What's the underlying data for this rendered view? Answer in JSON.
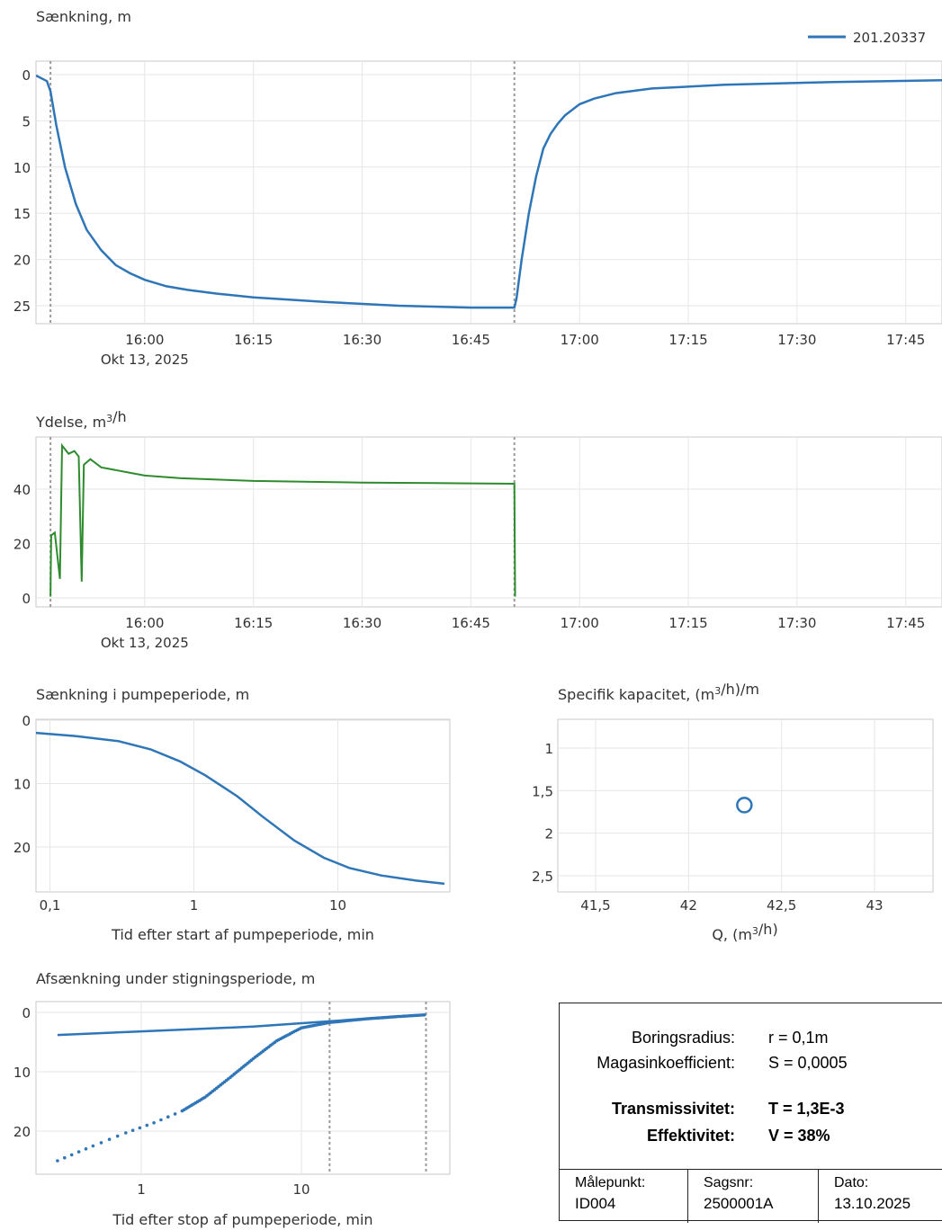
{
  "chart_data": [
    {
      "id": "drawdown",
      "type": "line",
      "title": "Sænkning, m",
      "legend": [
        "201.20337"
      ],
      "legend_position": "top-right",
      "y_inverted": true,
      "ylim": [
        0,
        27
      ],
      "y_ticks": [
        "0",
        "5",
        "10",
        "15",
        "20",
        "25"
      ],
      "x_range_min": [
        945,
        1070
      ],
      "x_ticks": [
        "16:00",
        "16:15",
        "16:30",
        "16:45",
        "17:00",
        "17:15",
        "17:30",
        "17:45"
      ],
      "x_date_label": "Okt 13, 2025",
      "vlines_min": [
        947,
        1011
      ],
      "series": [
        {
          "name": "201.20337",
          "color": "#2f76b8",
          "points": [
            [
              945,
              0.1
            ],
            [
              946.5,
              0.7
            ],
            [
              947,
              1.8
            ],
            [
              947.8,
              5.5
            ],
            [
              949,
              10
            ],
            [
              950.5,
              14
            ],
            [
              952,
              16.8
            ],
            [
              954,
              19
            ],
            [
              956,
              20.6
            ],
            [
              958,
              21.5
            ],
            [
              960,
              22.2
            ],
            [
              963,
              22.9
            ],
            [
              966,
              23.3
            ],
            [
              970,
              23.7
            ],
            [
              975,
              24.1
            ],
            [
              985,
              24.6
            ],
            [
              995,
              25
            ],
            [
              1005,
              25.2
            ],
            [
              1011,
              25.2
            ],
            [
              1011.3,
              24.2
            ],
            [
              1012,
              20
            ],
            [
              1013,
              15
            ],
            [
              1014,
              11
            ],
            [
              1015,
              8
            ],
            [
              1016,
              6.4
            ],
            [
              1017,
              5.3
            ],
            [
              1018,
              4.4
            ],
            [
              1020,
              3.2
            ],
            [
              1022,
              2.6
            ],
            [
              1025,
              2
            ],
            [
              1030,
              1.5
            ],
            [
              1040,
              1.1
            ],
            [
              1055,
              0.8
            ],
            [
              1070,
              0.6
            ]
          ]
        }
      ]
    },
    {
      "id": "yield",
      "type": "line",
      "title": "Ydelse, m³/h",
      "ylim": [
        -3,
        59
      ],
      "y_ticks": [
        "0",
        "20",
        "40"
      ],
      "x_range_min": [
        945,
        1070
      ],
      "x_ticks": [
        "16:00",
        "16:15",
        "16:30",
        "16:45",
        "17:00",
        "17:15",
        "17:30",
        "17:45"
      ],
      "x_date_label": "Okt 13, 2025",
      "vlines_min": [
        947,
        1011
      ],
      "series": [
        {
          "name": "",
          "color": "#2e8b2e",
          "points": [
            [
              947,
              0.5
            ],
            [
              947.1,
              23
            ],
            [
              947.6,
              24
            ],
            [
              948.3,
              7
            ],
            [
              948.6,
              56
            ],
            [
              949.5,
              53
            ],
            [
              950.3,
              54
            ],
            [
              950.9,
              52
            ],
            [
              951.3,
              6
            ],
            [
              951.6,
              49
            ],
            [
              952.5,
              51
            ],
            [
              954,
              48
            ],
            [
              956,
              47
            ],
            [
              958,
              46
            ],
            [
              960,
              45
            ],
            [
              965,
              44
            ],
            [
              970,
              43.5
            ],
            [
              975,
              43
            ],
            [
              980,
              42.8
            ],
            [
              985,
              42.6
            ],
            [
              990,
              42.4
            ],
            [
              995,
              42.3
            ],
            [
              1000,
              42.2
            ],
            [
              1005,
              42.1
            ],
            [
              1011,
              42
            ],
            [
              1011.1,
              0.5
            ]
          ]
        }
      ]
    },
    {
      "id": "pump-period",
      "type": "line",
      "title": "Sænkning i pumpeperiode, m",
      "xlabel": "Tid efter start af pumpeperiode, min",
      "x_scale": "log",
      "xlim": [
        0.08,
        60
      ],
      "x_ticks": [
        0.1,
        1,
        10
      ],
      "x_tick_labels": [
        "0,1",
        "1",
        "10"
      ],
      "ylim": [
        0,
        27
      ],
      "y_inverted": true,
      "y_ticks": [
        "0",
        "10",
        "20"
      ],
      "series": [
        {
          "name": "",
          "color": "#2f76b8",
          "points": [
            [
              0.08,
              2
            ],
            [
              0.15,
              2.5
            ],
            [
              0.3,
              3.3
            ],
            [
              0.5,
              4.6
            ],
            [
              0.8,
              6.5
            ],
            [
              1.2,
              8.7
            ],
            [
              2,
              12
            ],
            [
              3,
              15.2
            ],
            [
              5,
              19
            ],
            [
              8,
              21.7
            ],
            [
              12,
              23.3
            ],
            [
              20,
              24.5
            ],
            [
              35,
              25.3
            ],
            [
              55,
              25.8
            ]
          ]
        }
      ]
    },
    {
      "id": "specific-capacity",
      "type": "scatter",
      "title": "Specifik kapacitet, (m³/h)/m",
      "xlabel": "Q, (m³/h)",
      "xlim": [
        41.3,
        43.3
      ],
      "x_ticks": [
        41.5,
        42,
        42.5,
        43
      ],
      "x_tick_labels": [
        "41,5",
        "42",
        "42,5",
        "43"
      ],
      "ylim": [
        0.7,
        2.7
      ],
      "y_inverted": true,
      "y_ticks": [
        1,
        1.5,
        2,
        2.5
      ],
      "y_tick_labels": [
        "1",
        "1,5",
        "2",
        "2,5"
      ],
      "points": [
        [
          42.3,
          1.67
        ]
      ],
      "color": "#2f76b8"
    },
    {
      "id": "recovery",
      "type": "line",
      "title": "Afsænkning under stigningsperiode, m",
      "xlabel": "Tid efter stop af pumpeperiode, min",
      "x_scale": "log",
      "xlim": [
        0.18,
        80
      ],
      "x_ticks": [
        1,
        10
      ],
      "x_tick_labels": [
        "1",
        "10"
      ],
      "ylim": [
        0,
        27
      ],
      "y_inverted": true,
      "y_ticks": [
        "0",
        "10",
        "20"
      ],
      "vlines": [
        15,
        60
      ],
      "series": [
        {
          "name": "",
          "color": "#2f76b8",
          "style": "solid",
          "points": [
            [
              0.3,
              3.8
            ],
            [
              1,
              3.2
            ],
            [
              5,
              2.4
            ],
            [
              15,
              1.5
            ],
            [
              30,
              0.9
            ],
            [
              60,
              0.4
            ]
          ]
        },
        {
          "name": "",
          "color": "#2f76b8",
          "style": "dotted",
          "points": [
            [
              0.3,
              25
            ],
            [
              0.5,
              22.5
            ],
            [
              0.8,
              20.3
            ],
            [
              1.2,
              18.6
            ],
            [
              1.8,
              16.6
            ],
            [
              2.5,
              14.3
            ],
            [
              3.5,
              11.2
            ],
            [
              5,
              7.8
            ],
            [
              7,
              4.8
            ],
            [
              10,
              2.6
            ],
            [
              15,
              1.7
            ],
            [
              25,
              1.1
            ],
            [
              40,
              0.7
            ],
            [
              60,
              0.4
            ]
          ]
        }
      ]
    }
  ],
  "info_box": {
    "rows": [
      {
        "key": "Boringsradius:",
        "value": "r = 0,1m",
        "bold": false
      },
      {
        "key": "Magasinkoefficient:",
        "value": "S = 0,0005",
        "bold": false
      },
      {
        "key": "Transmissivitet:",
        "value": "T = 1,3E-3",
        "bold": true
      },
      {
        "key": "Effektivitet:",
        "value": "V = 38%",
        "bold": true
      }
    ],
    "footer": [
      {
        "label": "Målepunkt:",
        "value": "ID004"
      },
      {
        "label": "Sagsnr:",
        "value": "2500001A"
      },
      {
        "label": "Dato:",
        "value": "13.10.2025"
      }
    ]
  }
}
